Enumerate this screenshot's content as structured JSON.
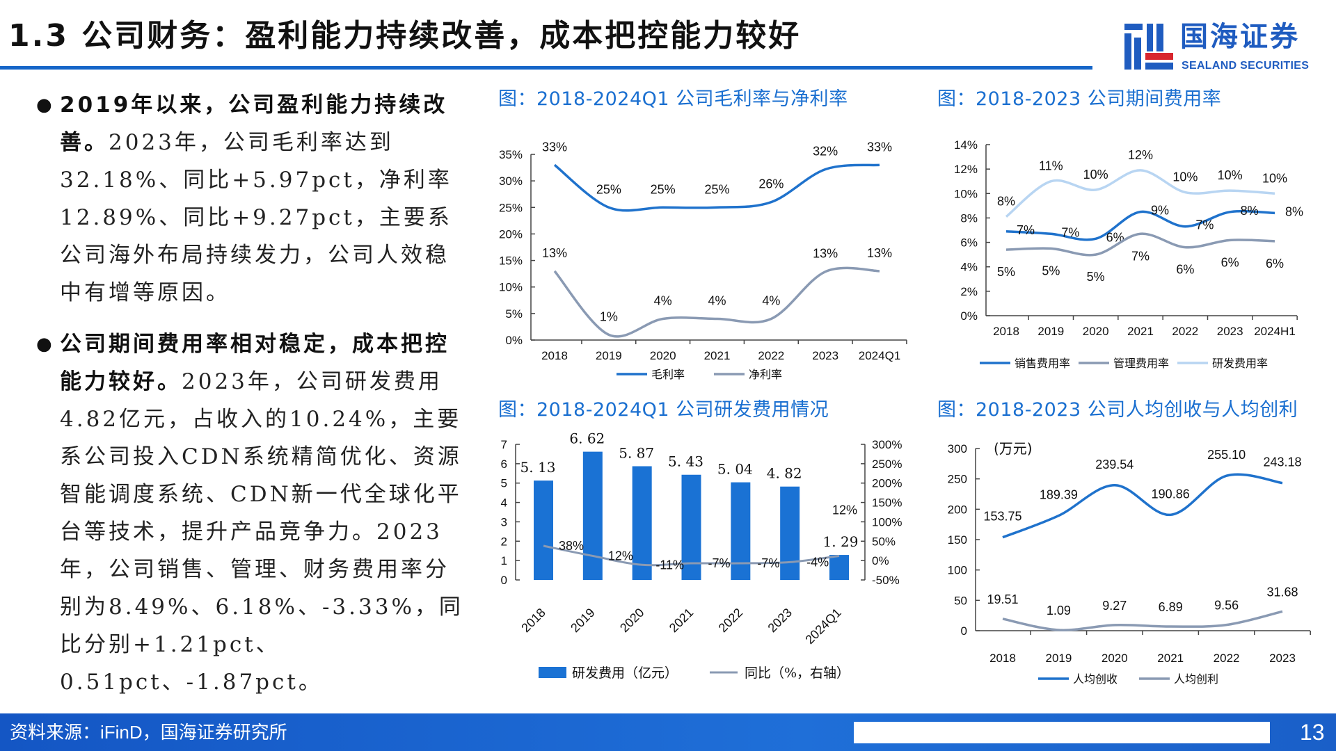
{
  "header": {
    "title": "1.3 公司财务：盈利能力持续改善，成本把控能力较好",
    "logo_cn": "国海证券",
    "logo_en": "SEALAND SECURITIES"
  },
  "body": {
    "paragraphs": [
      {
        "lead": "2019年以来，公司盈利能力持续改善。",
        "text": "2023年，公司毛利率达到32.18%、同比+5.97pct，净利率12.89%、同比+9.27pct，主要系公司海外布局持续发力，公司人效稳中有增等原因。"
      },
      {
        "lead": "公司期间费用率相对稳定，成本把控能力较好。",
        "text": "2023年，公司研发费用4.82亿元，占收入的10.24%，主要系公司投入CDN系统精简优化、资源智能调度系统、CDN新一代全球化平台等技术，提升产品竞争力。2023年，公司销售、管理、财务费用率分别为8.49%、6.18%、-3.33%，同比分别+1.21pct、0.51pct、-1.87pct。"
      }
    ]
  },
  "footer": {
    "source": "资料来源：iFinD，国海证券研究所",
    "page": "13"
  },
  "colors": {
    "brand": "#1565c8",
    "series_dark": "#1f72cc",
    "series_gray": "#8a9ab3",
    "series_light": "#b8d5f2",
    "bar": "#1a72d4"
  },
  "chart_data": [
    {
      "type": "line",
      "title": "图：2018-2024Q1 公司毛利率与净利率",
      "categories": [
        "2018",
        "2019",
        "2020",
        "2021",
        "2022",
        "2023",
        "2024Q1"
      ],
      "ylim": [
        0,
        35
      ],
      "yticks": [
        "0%",
        "5%",
        "10%",
        "15%",
        "20%",
        "25%",
        "30%",
        "35%"
      ],
      "legend": "bottom",
      "series": [
        {
          "name": "毛利率",
          "values": [
            33,
            25,
            25,
            25,
            26,
            32.18,
            33
          ],
          "labels": [
            "33%",
            "25%",
            "25%",
            "25%",
            "26%",
            "32%",
            "33%"
          ]
        },
        {
          "name": "净利率",
          "values": [
            13,
            1,
            4,
            4,
            4,
            12.89,
            13
          ],
          "labels": [
            "13%",
            "1%",
            "4%",
            "4%",
            "4%",
            "13%",
            "13%"
          ]
        }
      ]
    },
    {
      "type": "line",
      "title": "图：2018-2023 公司期间费用率",
      "categories": [
        "2018",
        "2019",
        "2020",
        "2021",
        "2022",
        "2023",
        "2024H1"
      ],
      "ylim": [
        0,
        14
      ],
      "yticks": [
        "0%",
        "2%",
        "4%",
        "6%",
        "8%",
        "10%",
        "12%",
        "14%"
      ],
      "legend": "bottom",
      "series": [
        {
          "name": "销售费用率",
          "values": [
            6.9,
            6.7,
            6.3,
            8.5,
            7.3,
            8.49,
            8.4
          ],
          "labels": [
            "7%",
            "7%",
            "6%",
            "9%",
            "7%",
            "8%",
            "8%"
          ]
        },
        {
          "name": "管理费用率",
          "values": [
            5.4,
            5.5,
            5.0,
            6.7,
            5.6,
            6.18,
            6.1
          ],
          "labels": [
            "5%",
            "5%",
            "5%",
            "7%",
            "6%",
            "6%",
            "6%"
          ]
        },
        {
          "name": "研发费用率",
          "values": [
            8.1,
            11,
            10.3,
            11.9,
            10.1,
            10.24,
            10.0
          ],
          "labels": [
            "8%",
            "11%",
            "10%",
            "12%",
            "10%",
            "10%",
            "10%"
          ]
        }
      ]
    },
    {
      "type": "bar+line",
      "title": "图：2018-2024Q1 公司研发费用情况",
      "categories": [
        "2018",
        "2019",
        "2020",
        "2021",
        "2022",
        "2023",
        "2024Q1"
      ],
      "ylim": [
        0,
        7
      ],
      "yticks": [
        "0",
        "1",
        "2",
        "3",
        "4",
        "5",
        "6",
        "7"
      ],
      "y2lim": [
        -50,
        300
      ],
      "y2ticks": [
        "-50%",
        "0%",
        "50%",
        "100%",
        "150%",
        "200%",
        "250%",
        "300%"
      ],
      "legend": "bottom",
      "bars": {
        "name": "研发费用（亿元）",
        "values": [
          5.13,
          6.62,
          5.87,
          5.43,
          5.04,
          4.82,
          1.29
        ],
        "labels": [
          "5. 13",
          "6. 62",
          "5. 87",
          "5. 43",
          "5. 04",
          "4. 82",
          "1. 29"
        ]
      },
      "line": {
        "name": "同比（%，右轴）",
        "values": [
          38,
          12,
          -11,
          -7,
          -7,
          -4,
          12
        ],
        "labels": [
          "38%",
          "12%",
          "-11%",
          "-7%",
          "-7%",
          "-4%",
          "12%"
        ]
      }
    },
    {
      "type": "line",
      "title": "图：2018-2023 公司人均创收与人均创利",
      "unit": "(万元)",
      "categories": [
        "2018",
        "2019",
        "2020",
        "2021",
        "2022",
        "2023"
      ],
      "ylim": [
        0,
        300
      ],
      "yticks": [
        "0",
        "50",
        "100",
        "150",
        "200",
        "250",
        "300"
      ],
      "legend": "bottom",
      "series": [
        {
          "name": "人均创收",
          "values": [
            153.75,
            189.39,
            239.54,
            190.86,
            255.1,
            243.18
          ],
          "labels": [
            "153.75",
            "189.39",
            "239.54",
            "190.86",
            "255.10",
            "243.18"
          ]
        },
        {
          "name": "人均创利",
          "values": [
            19.51,
            1.09,
            9.27,
            6.89,
            9.56,
            31.68
          ],
          "labels": [
            "19.51",
            "1.09",
            "9.27",
            "6.89",
            "9.56",
            "31.68"
          ]
        }
      ]
    }
  ]
}
